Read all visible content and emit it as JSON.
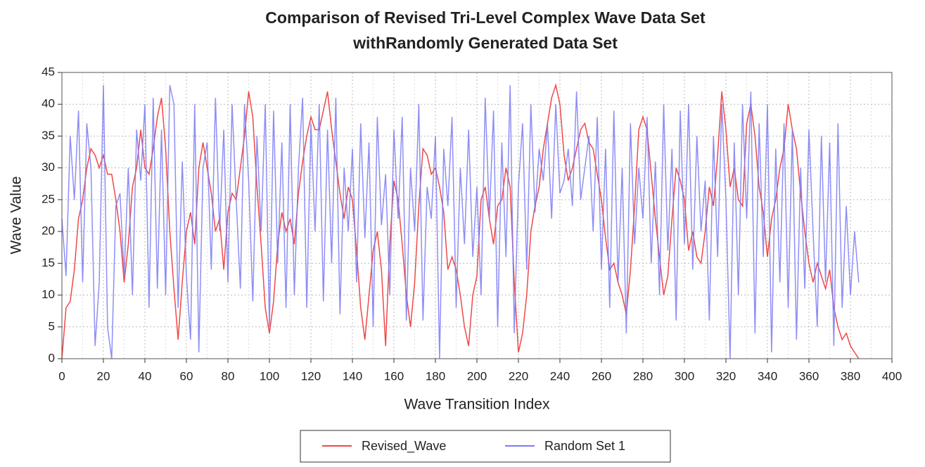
{
  "chart_data": {
    "type": "line",
    "title": "Comparison of Revised Tri-Level Complex Wave Data Set",
    "subtitle": "withRandomly Generated Data Set",
    "x_label": "Wave Transition Index",
    "y_label": "Wave Value",
    "x": [
      0,
      2,
      4,
      6,
      8,
      10,
      12,
      14,
      16,
      18,
      20,
      22,
      24,
      26,
      28,
      30,
      32,
      34,
      36,
      38,
      40,
      42,
      44,
      46,
      48,
      50,
      52,
      54,
      56,
      58,
      60,
      62,
      64,
      66,
      68,
      70,
      72,
      74,
      76,
      78,
      80,
      82,
      84,
      86,
      88,
      90,
      92,
      94,
      96,
      98,
      100,
      102,
      104,
      106,
      108,
      110,
      112,
      114,
      116,
      118,
      120,
      122,
      124,
      126,
      128,
      130,
      132,
      134,
      136,
      138,
      140,
      142,
      144,
      146,
      148,
      150,
      152,
      154,
      156,
      158,
      160,
      162,
      164,
      166,
      168,
      170,
      172,
      174,
      176,
      178,
      180,
      182,
      184,
      186,
      188,
      190,
      192,
      194,
      196,
      198,
      200,
      202,
      204,
      206,
      208,
      210,
      212,
      214,
      216,
      218,
      220,
      222,
      224,
      226,
      228,
      230,
      232,
      234,
      236,
      238,
      240,
      242,
      244,
      246,
      248,
      250,
      252,
      254,
      256,
      258,
      260,
      262,
      264,
      266,
      268,
      270,
      272,
      274,
      276,
      278,
      280,
      282,
      284,
      286,
      288,
      290,
      292,
      294,
      296,
      298,
      300,
      302,
      304,
      306,
      308,
      310,
      312,
      314,
      316,
      318,
      320,
      322,
      324,
      326,
      328,
      330,
      332,
      334,
      336,
      338,
      340,
      342,
      344,
      346,
      348,
      350,
      352,
      354,
      356,
      358,
      360,
      362,
      364,
      366,
      368,
      370,
      372,
      374,
      376,
      378,
      380,
      382,
      384
    ],
    "series": [
      {
        "name": "Revised_Wave",
        "color": "#f04848",
        "values": [
          0,
          8,
          9,
          14,
          22,
          25,
          30,
          33,
          32,
          30,
          32,
          29,
          29,
          25,
          20,
          12,
          18,
          27,
          30,
          36,
          30,
          29,
          33,
          38,
          41,
          33,
          20,
          11,
          3,
          12,
          20,
          23,
          18,
          30,
          34,
          30,
          26,
          20,
          22,
          14,
          23,
          26,
          25,
          30,
          35,
          42,
          38,
          27,
          18,
          8,
          4,
          9,
          18,
          23,
          20,
          22,
          18,
          26,
          31,
          35,
          38,
          36,
          36,
          39,
          42,
          36,
          31,
          26,
          22,
          27,
          25,
          17,
          8,
          3,
          10,
          17,
          20,
          14,
          2,
          18,
          28,
          25,
          18,
          10,
          5,
          12,
          24,
          33,
          32,
          29,
          30,
          27,
          23,
          14,
          16,
          14,
          10,
          5,
          2,
          10,
          13,
          25,
          27,
          22,
          18,
          24,
          25,
          30,
          27,
          12,
          1,
          4,
          10,
          20,
          24,
          27,
          33,
          37,
          41,
          43,
          40,
          32,
          28,
          30,
          33,
          36,
          37,
          34,
          33,
          29,
          25,
          19,
          14,
          15,
          12,
          10,
          7,
          14,
          24,
          36,
          38,
          36,
          29,
          22,
          16,
          10,
          13,
          22,
          30,
          28,
          25,
          17,
          20,
          16,
          15,
          20,
          27,
          24,
          32,
          42,
          36,
          27,
          30,
          25,
          24,
          37,
          40,
          35,
          27,
          23,
          16,
          22,
          25,
          30,
          33,
          40,
          36,
          33,
          26,
          20,
          15,
          12,
          15,
          13,
          11,
          14,
          8,
          5,
          3,
          4,
          2,
          1,
          0
        ]
      },
      {
        "name": "Random Set 1",
        "color": "#7a7af5",
        "values": [
          22,
          13,
          35,
          25,
          39,
          12,
          37,
          30,
          2,
          12,
          43,
          5,
          0,
          24,
          26,
          13,
          30,
          10,
          36,
          28,
          40,
          8,
          41,
          11,
          36,
          10,
          43,
          40,
          8,
          31,
          13,
          3,
          40,
          1,
          30,
          34,
          14,
          41,
          20,
          36,
          12,
          40,
          25,
          11,
          40,
          28,
          9,
          35,
          20,
          40,
          5,
          39,
          15,
          34,
          8,
          40,
          10,
          30,
          41,
          8,
          37,
          20,
          40,
          9,
          36,
          15,
          41,
          7,
          30,
          20,
          33,
          12,
          37,
          19,
          34,
          5,
          38,
          21,
          29,
          10,
          36,
          22,
          38,
          6,
          30,
          20,
          40,
          6,
          27,
          22,
          35,
          0,
          33,
          24,
          38,
          8,
          30,
          18,
          36,
          16,
          27,
          10,
          41,
          22,
          39,
          5,
          34,
          16,
          43,
          4,
          27,
          37,
          14,
          40,
          23,
          33,
          28,
          37,
          22,
          40,
          26,
          28,
          33,
          24,
          42,
          25,
          30,
          35,
          20,
          38,
          14,
          33,
          8,
          39,
          12,
          30,
          4,
          37,
          18,
          30,
          22,
          38,
          15,
          31,
          10,
          40,
          17,
          33,
          6,
          39,
          18,
          40,
          14,
          35,
          20,
          28,
          6,
          35,
          16,
          40,
          25,
          0,
          34,
          10,
          40,
          22,
          42,
          4,
          37,
          16,
          40,
          1,
          33,
          12,
          37,
          8,
          36,
          3,
          30,
          11,
          36,
          20,
          5,
          35,
          12,
          34,
          2,
          37,
          8,
          24,
          10,
          20,
          12
        ]
      }
    ],
    "xlim": [
      0,
      400
    ],
    "xticks": [
      0,
      20,
      40,
      60,
      80,
      100,
      120,
      140,
      160,
      180,
      200,
      220,
      240,
      260,
      280,
      300,
      320,
      340,
      360,
      380,
      400
    ],
    "ylim": [
      0,
      45
    ],
    "yticks": [
      0,
      5,
      10,
      15,
      20,
      25,
      30,
      35,
      40,
      45
    ],
    "grid": true,
    "legend": "bottom"
  }
}
